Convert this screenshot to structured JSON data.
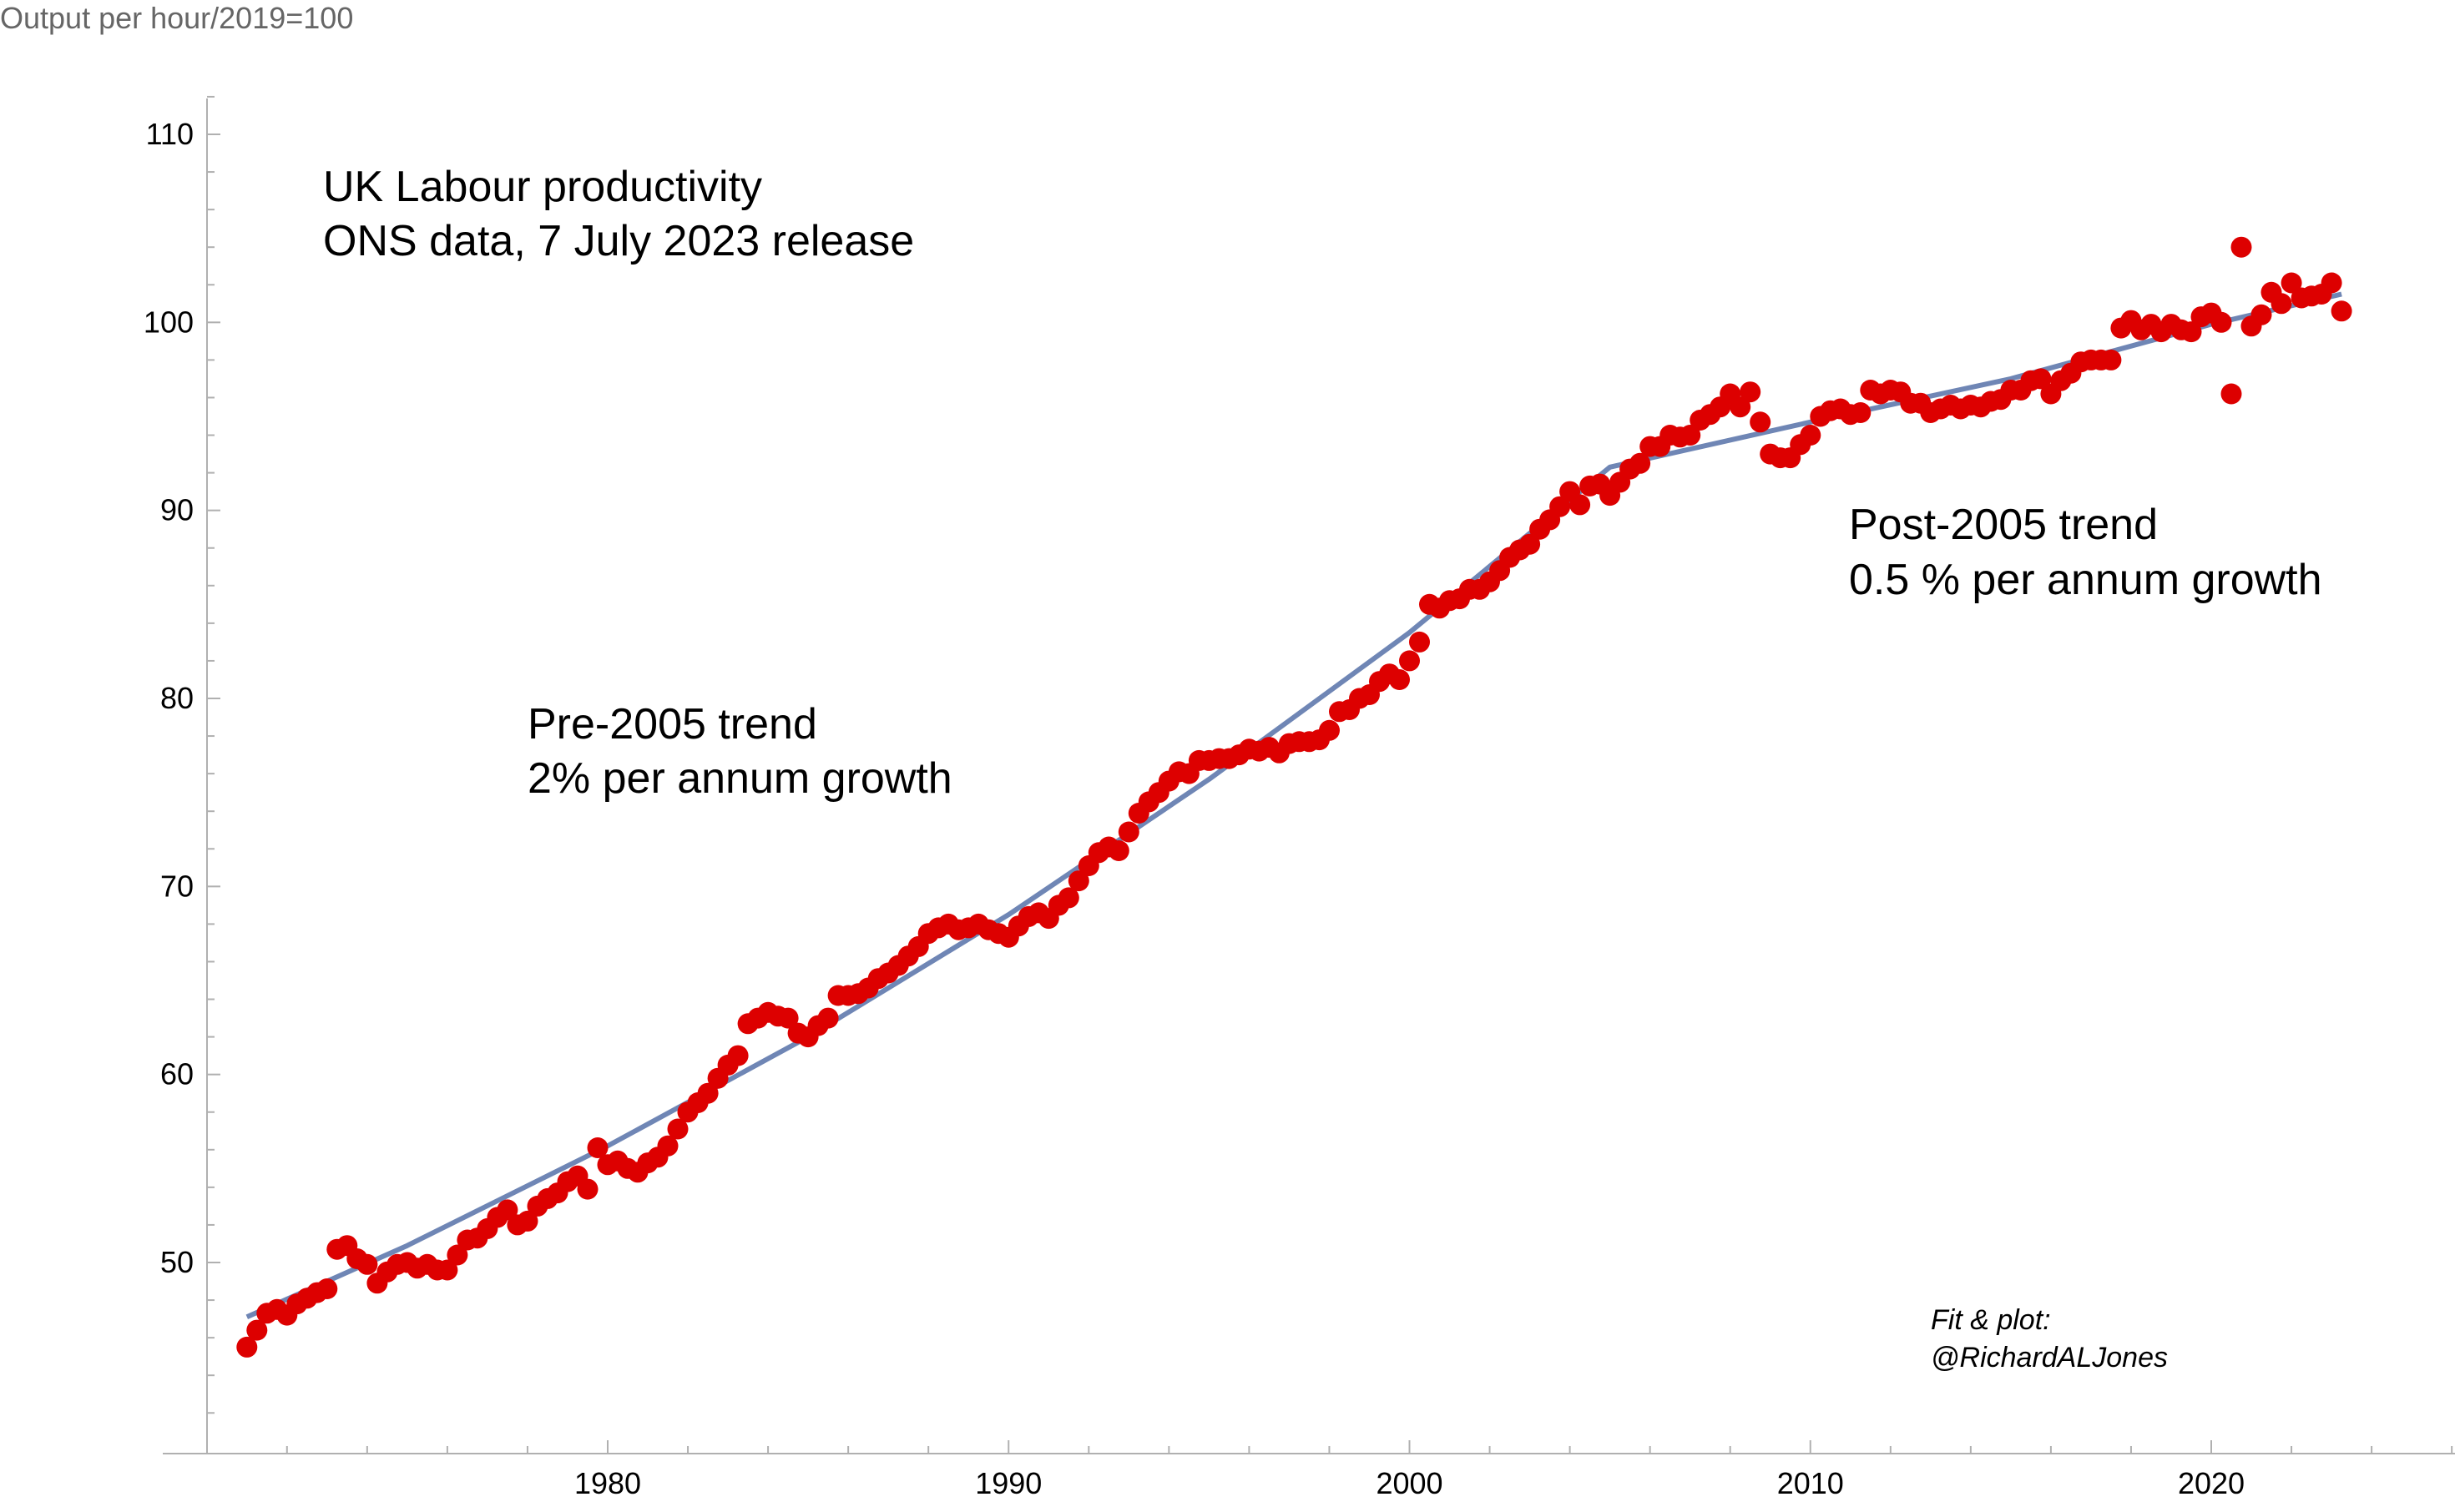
{
  "chart_data": {
    "type": "scatter",
    "title": "",
    "xlabel": "",
    "ylabel": "Output per hour/2019=100",
    "xlim": [
      1971,
      2026
    ],
    "ylim": [
      40,
      113
    ],
    "x_ticks": [
      1980,
      1990,
      2000,
      2010,
      2020
    ],
    "y_ticks": [
      50,
      60,
      70,
      80,
      90,
      100,
      110
    ],
    "grid": false,
    "annotations": [
      {
        "id": "title",
        "lines": [
          "UK Labour productivity",
          "ONS data, 7 July 2023 release"
        ]
      },
      {
        "id": "pre",
        "lines": [
          "Pre-2005 trend",
          "2% per annum growth"
        ]
      },
      {
        "id": "post",
        "lines": [
          "Post-2005 trend",
          "0.5 % per annum growth"
        ]
      },
      {
        "id": "credit",
        "lines": [
          "Fit & plot:",
          "@RichardALJones"
        ]
      }
    ],
    "series": [
      {
        "type": "scatter",
        "color": "#dd0000",
        "points": [
          [
            1971.0,
            45.5
          ],
          [
            1971.25,
            46.4
          ],
          [
            1971.5,
            47.3
          ],
          [
            1971.75,
            47.5
          ],
          [
            1972.0,
            47.2
          ],
          [
            1972.25,
            47.8
          ],
          [
            1972.5,
            48.1
          ],
          [
            1972.75,
            48.4
          ],
          [
            1973.0,
            48.6
          ],
          [
            1973.25,
            50.7
          ],
          [
            1973.5,
            50.9
          ],
          [
            1973.75,
            50.2
          ],
          [
            1974.0,
            49.9
          ],
          [
            1974.25,
            48.9
          ],
          [
            1974.5,
            49.5
          ],
          [
            1974.75,
            49.9
          ],
          [
            1975.0,
            50.0
          ],
          [
            1975.25,
            49.7
          ],
          [
            1975.5,
            49.9
          ],
          [
            1975.75,
            49.6
          ],
          [
            1976.0,
            49.6
          ],
          [
            1976.25,
            50.4
          ],
          [
            1976.5,
            51.2
          ],
          [
            1976.75,
            51.3
          ],
          [
            1977.0,
            51.8
          ],
          [
            1977.25,
            52.4
          ],
          [
            1977.5,
            52.8
          ],
          [
            1977.75,
            52.0
          ],
          [
            1978.0,
            52.2
          ],
          [
            1978.25,
            53.0
          ],
          [
            1978.5,
            53.4
          ],
          [
            1978.75,
            53.7
          ],
          [
            1979.0,
            54.3
          ],
          [
            1979.25,
            54.6
          ],
          [
            1979.5,
            53.9
          ],
          [
            1979.75,
            56.1
          ],
          [
            1980.0,
            55.2
          ],
          [
            1980.25,
            55.4
          ],
          [
            1980.5,
            55.0
          ],
          [
            1980.75,
            54.8
          ],
          [
            1981.0,
            55.3
          ],
          [
            1981.25,
            55.6
          ],
          [
            1981.5,
            56.2
          ],
          [
            1981.75,
            57.1
          ],
          [
            1982.0,
            58.0
          ],
          [
            1982.25,
            58.5
          ],
          [
            1982.5,
            59.0
          ],
          [
            1982.75,
            59.8
          ],
          [
            1983.0,
            60.5
          ],
          [
            1983.25,
            61.0
          ],
          [
            1983.5,
            62.7
          ],
          [
            1983.75,
            63.0
          ],
          [
            1984.0,
            63.3
          ],
          [
            1984.25,
            63.1
          ],
          [
            1984.5,
            63.0
          ],
          [
            1984.75,
            62.2
          ],
          [
            1985.0,
            62.0
          ],
          [
            1985.25,
            62.6
          ],
          [
            1985.5,
            63.0
          ],
          [
            1985.75,
            64.2
          ],
          [
            1986.0,
            64.2
          ],
          [
            1986.25,
            64.3
          ],
          [
            1986.5,
            64.6
          ],
          [
            1986.75,
            65.1
          ],
          [
            1987.0,
            65.4
          ],
          [
            1987.25,
            65.8
          ],
          [
            1987.5,
            66.3
          ],
          [
            1987.75,
            66.8
          ],
          [
            1988.0,
            67.5
          ],
          [
            1988.25,
            67.8
          ],
          [
            1988.5,
            68.0
          ],
          [
            1988.75,
            67.7
          ],
          [
            1989.0,
            67.8
          ],
          [
            1989.25,
            68.0
          ],
          [
            1989.5,
            67.7
          ],
          [
            1989.75,
            67.5
          ],
          [
            1990.0,
            67.3
          ],
          [
            1990.25,
            67.9
          ],
          [
            1990.5,
            68.4
          ],
          [
            1990.75,
            68.6
          ],
          [
            1991.0,
            68.3
          ],
          [
            1991.25,
            69.0
          ],
          [
            1991.5,
            69.4
          ],
          [
            1991.75,
            70.3
          ],
          [
            1992.0,
            71.1
          ],
          [
            1992.25,
            71.8
          ],
          [
            1992.5,
            72.1
          ],
          [
            1992.75,
            71.9
          ],
          [
            1993.0,
            72.9
          ],
          [
            1993.25,
            73.9
          ],
          [
            1993.5,
            74.5
          ],
          [
            1993.75,
            75.0
          ],
          [
            1994.0,
            75.6
          ],
          [
            1994.25,
            76.1
          ],
          [
            1994.5,
            76.0
          ],
          [
            1994.75,
            76.7
          ],
          [
            1995.0,
            76.7
          ],
          [
            1995.25,
            76.8
          ],
          [
            1995.5,
            76.8
          ],
          [
            1995.75,
            77.0
          ],
          [
            1996.0,
            77.3
          ],
          [
            1996.25,
            77.2
          ],
          [
            1996.5,
            77.4
          ],
          [
            1996.75,
            77.1
          ],
          [
            1997.0,
            77.6
          ],
          [
            1997.25,
            77.7
          ],
          [
            1997.5,
            77.7
          ],
          [
            1997.75,
            77.8
          ],
          [
            1998.0,
            78.3
          ],
          [
            1998.25,
            79.3
          ],
          [
            1998.5,
            79.4
          ],
          [
            1998.75,
            80.0
          ],
          [
            1999.0,
            80.2
          ],
          [
            1999.25,
            80.9
          ],
          [
            1999.5,
            81.3
          ],
          [
            1999.75,
            81.0
          ],
          [
            2000.0,
            82.0
          ],
          [
            2000.25,
            83.0
          ],
          [
            2000.5,
            85.0
          ],
          [
            2000.75,
            84.8
          ],
          [
            2001.0,
            85.2
          ],
          [
            2001.25,
            85.3
          ],
          [
            2001.5,
            85.8
          ],
          [
            2001.75,
            85.8
          ],
          [
            2002.0,
            86.2
          ],
          [
            2002.25,
            86.8
          ],
          [
            2002.5,
            87.5
          ],
          [
            2002.75,
            87.9
          ],
          [
            2003.0,
            88.2
          ],
          [
            2003.25,
            89.0
          ],
          [
            2003.5,
            89.5
          ],
          [
            2003.75,
            90.2
          ],
          [
            2004.0,
            91.0
          ],
          [
            2004.25,
            90.3
          ],
          [
            2004.5,
            91.3
          ],
          [
            2004.75,
            91.4
          ],
          [
            2005.0,
            90.8
          ],
          [
            2005.25,
            91.5
          ],
          [
            2005.5,
            92.2
          ],
          [
            2005.75,
            92.5
          ],
          [
            2006.0,
            93.4
          ],
          [
            2006.25,
            93.4
          ],
          [
            2006.5,
            94.0
          ],
          [
            2006.75,
            93.9
          ],
          [
            2007.0,
            94.0
          ],
          [
            2007.25,
            94.8
          ],
          [
            2007.5,
            95.1
          ],
          [
            2007.75,
            95.5
          ],
          [
            2008.0,
            96.2
          ],
          [
            2008.25,
            95.5
          ],
          [
            2008.5,
            96.3
          ],
          [
            2008.75,
            94.7
          ],
          [
            2009.0,
            93.0
          ],
          [
            2009.25,
            92.8
          ],
          [
            2009.5,
            92.8
          ],
          [
            2009.75,
            93.5
          ],
          [
            2010.0,
            94.0
          ],
          [
            2010.25,
            95.0
          ],
          [
            2010.5,
            95.3
          ],
          [
            2010.75,
            95.4
          ],
          [
            2011.0,
            95.1
          ],
          [
            2011.25,
            95.2
          ],
          [
            2011.5,
            96.4
          ],
          [
            2011.75,
            96.2
          ],
          [
            2012.0,
            96.4
          ],
          [
            2012.25,
            96.3
          ],
          [
            2012.5,
            95.7
          ],
          [
            2012.75,
            95.7
          ],
          [
            2013.0,
            95.2
          ],
          [
            2013.25,
            95.4
          ],
          [
            2013.5,
            95.6
          ],
          [
            2013.75,
            95.4
          ],
          [
            2014.0,
            95.6
          ],
          [
            2014.25,
            95.5
          ],
          [
            2014.5,
            95.8
          ],
          [
            2014.75,
            95.9
          ],
          [
            2015.0,
            96.4
          ],
          [
            2015.25,
            96.4
          ],
          [
            2015.5,
            96.9
          ],
          [
            2015.75,
            97.0
          ],
          [
            2016.0,
            96.2
          ],
          [
            2016.25,
            96.9
          ],
          [
            2016.5,
            97.3
          ],
          [
            2016.75,
            97.9
          ],
          [
            2017.0,
            98.0
          ],
          [
            2017.25,
            98.0
          ],
          [
            2017.5,
            98.0
          ],
          [
            2017.75,
            99.7
          ],
          [
            2018.0,
            100.1
          ],
          [
            2018.25,
            99.6
          ],
          [
            2018.5,
            99.9
          ],
          [
            2018.75,
            99.5
          ],
          [
            2019.0,
            99.9
          ],
          [
            2019.25,
            99.6
          ],
          [
            2019.5,
            99.5
          ],
          [
            2019.75,
            100.3
          ],
          [
            2020.0,
            100.5
          ],
          [
            2020.25,
            100.0
          ],
          [
            2020.5,
            96.2
          ],
          [
            2020.75,
            104.0
          ],
          [
            2021.0,
            99.8
          ],
          [
            2021.25,
            100.4
          ],
          [
            2021.5,
            101.6
          ],
          [
            2021.75,
            101.0
          ],
          [
            2022.0,
            102.1
          ],
          [
            2022.25,
            101.3
          ],
          [
            2022.5,
            101.4
          ],
          [
            2022.75,
            101.5
          ],
          [
            2023.0,
            102.1
          ],
          [
            2023.25,
            100.6
          ]
        ]
      },
      {
        "type": "line",
        "color": "#6f86b5",
        "points": [
          [
            1971.0,
            47.1
          ],
          [
            1975.0,
            50.9
          ],
          [
            1980.0,
            56.2
          ],
          [
            1985.0,
            62.0
          ],
          [
            1990.0,
            68.5
          ],
          [
            1995.0,
            75.7
          ],
          [
            2000.0,
            83.5
          ],
          [
            2005.0,
            92.3
          ],
          [
            2010.0,
            94.7
          ],
          [
            2015.0,
            97.0
          ],
          [
            2020.0,
            99.9
          ],
          [
            2023.25,
            101.5
          ]
        ]
      }
    ]
  }
}
